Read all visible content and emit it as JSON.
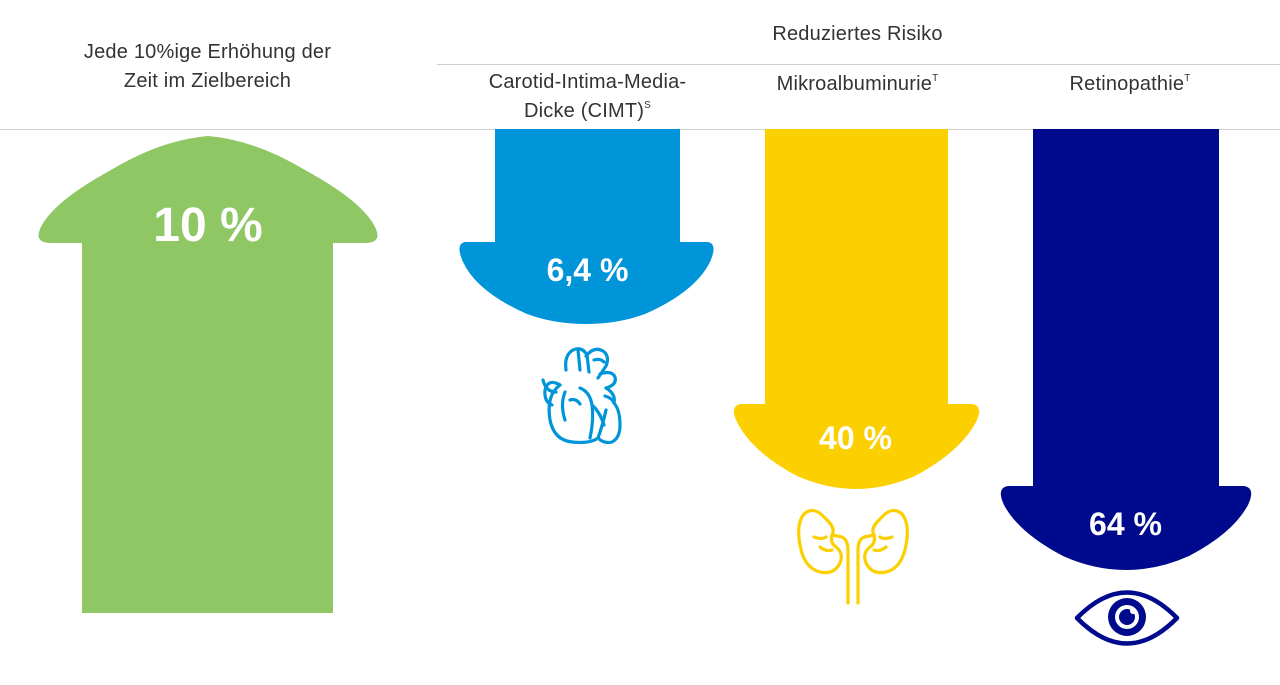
{
  "left_header": {
    "line1": "Jede 10%ige Erhöhung der",
    "line2": "Zeit im Zielbereich"
  },
  "group_header": "Reduziertes Risiko",
  "columns": [
    {
      "label_line1": "Carotid-Intima-Media-",
      "label_line2": "Dicke (CIMT)",
      "superscript": "S",
      "value": "6,4 %",
      "color": "#0095d9",
      "icon": "heart-icon"
    },
    {
      "label_line1": "Mikroalbuminurie",
      "superscript": "T",
      "value": "40 %",
      "color": "#fcd000",
      "icon": "kidneys-icon"
    },
    {
      "label_line1": "Retinopathie",
      "superscript": "T",
      "value": "64 %",
      "color": "#000a8c",
      "icon": "eye-icon"
    }
  ],
  "up_arrow": {
    "value": "10 %",
    "color": "#8fc765"
  }
}
